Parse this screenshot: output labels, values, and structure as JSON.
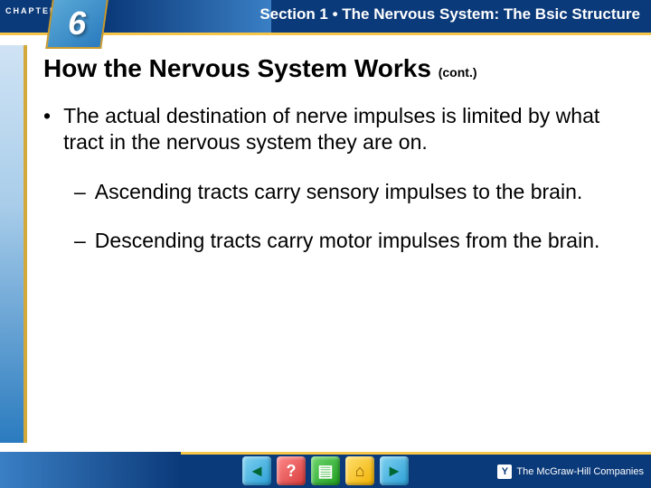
{
  "header": {
    "chapter_label": "CHAPTER",
    "chapter_number": "6",
    "section_label": "Section 1 • The Nervous System: The Bsic Structure"
  },
  "slide": {
    "title": "How the Nervous System Works",
    "title_cont": "(cont.)",
    "bullets_l1": [
      "The actual destination of nerve impulses is limited by what tract in the nervous system they are on."
    ],
    "bullets_l2": [
      "Ascending tracts carry sensory impulses to the brain.",
      "Descending tracts carry motor impulses from the brain."
    ]
  },
  "footer": {
    "nav": {
      "back": "◄",
      "help": "?",
      "book": "▤",
      "home": "⌂",
      "forward": "►"
    },
    "publisher_logo": "Y",
    "publisher": "The McGraw-Hill Companies"
  },
  "colors": {
    "brand_blue": "#0b3a7a",
    "accent_yellow": "#f6c64b",
    "gold": "#d4a93c"
  }
}
